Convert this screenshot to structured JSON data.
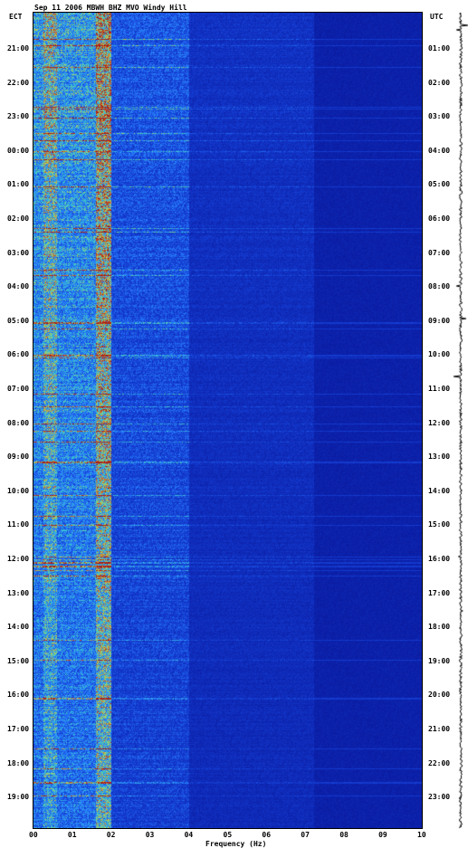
{
  "chart_data": {
    "type": "heatmap",
    "title": "Sep 11 2006 MBWH BHZ MVO Windy Hill",
    "left_axis_label": "ECT",
    "right_axis_label": "UTC",
    "xlabel": "Frequency (Hz)",
    "xlim": [
      0,
      10
    ],
    "x_ticks": [
      "00",
      "01",
      "02",
      "03",
      "04",
      "05",
      "06",
      "07",
      "08",
      "09",
      "10"
    ],
    "y_ticks_left": [
      "21:00",
      "22:00",
      "23:00",
      "00:00",
      "01:00",
      "02:00",
      "03:00",
      "04:00",
      "05:00",
      "06:00",
      "07:00",
      "08:00",
      "09:00",
      "10:00",
      "11:00",
      "12:00",
      "13:00",
      "14:00",
      "15:00",
      "16:00",
      "17:00",
      "18:00",
      "19:00"
    ],
    "y_ticks_right": [
      "01:00",
      "02:00",
      "03:00",
      "04:00",
      "05:00",
      "06:00",
      "07:00",
      "08:00",
      "09:00",
      "10:00",
      "11:00",
      "12:00",
      "13:00",
      "14:00",
      "15:00",
      "16:00",
      "17:00",
      "18:00",
      "19:00",
      "20:00",
      "21:00",
      "22:00",
      "23:00"
    ],
    "colors": {
      "background": "#1428b4",
      "low": "#0a1aa0",
      "mid": "#2e8cff",
      "high_mid": "#3cc8c8",
      "peak": "#c83c1e",
      "line": "#e0a070"
    },
    "energy_bands_hz": [
      {
        "from": 0.0,
        "to": 0.25,
        "level": "medium"
      },
      {
        "from": 0.25,
        "to": 0.6,
        "level": "high"
      },
      {
        "from": 0.6,
        "to": 1.6,
        "level": "medium"
      },
      {
        "from": 1.6,
        "to": 2.0,
        "level": "peak"
      },
      {
        "from": 2.0,
        "to": 4.0,
        "level": "medium-low"
      },
      {
        "from": 4.0,
        "to": 7.2,
        "level": "low"
      },
      {
        "from": 7.2,
        "to": 10.0,
        "level": "background"
      }
    ]
  }
}
